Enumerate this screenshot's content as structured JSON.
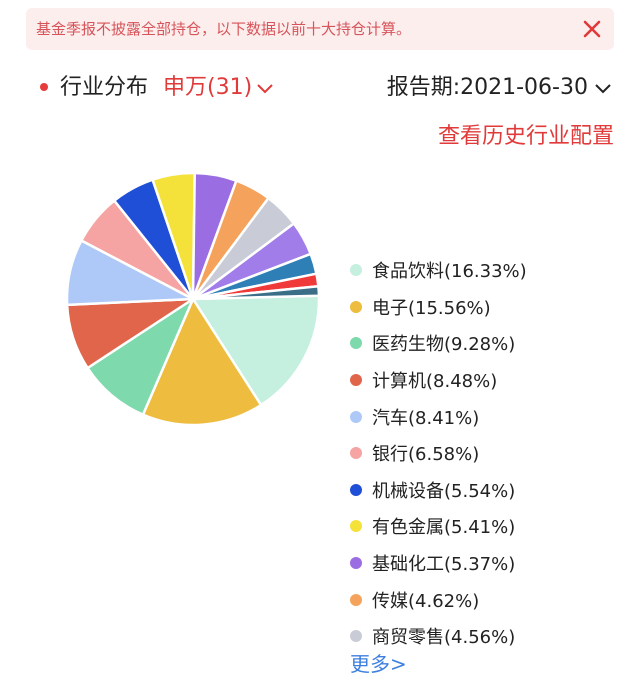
{
  "notice": {
    "text": "基金季报不披露全部持仓，以下数据以前十大持仓计算。"
  },
  "header": {
    "title": "行业分布",
    "classification": "申万(31)",
    "period": "报告期:2021-06-30"
  },
  "history_link": "查看历史行业配置",
  "more_link": "更多>",
  "colors": {
    "accent": "#e03a3a",
    "link": "#3d7fe0",
    "notice_bg": "#fdeeee"
  },
  "chart_data": {
    "type": "pie",
    "slices": [
      {
        "label": "食品饮料(16.33%)",
        "value": 16.33,
        "color": "#c5efdf"
      },
      {
        "label": "电子(15.56%)",
        "value": 15.56,
        "color": "#eebc3e"
      },
      {
        "label": "医药生物(9.28%)",
        "value": 9.28,
        "color": "#7ed9ac"
      },
      {
        "label": "计算机(8.48%)",
        "value": 8.48,
        "color": "#e0654b"
      },
      {
        "label": "汽车(8.41%)",
        "value": 8.41,
        "color": "#aec8f7"
      },
      {
        "label": "银行(6.58%)",
        "value": 6.58,
        "color": "#f5a3a3"
      },
      {
        "label": "机械设备(5.54%)",
        "value": 5.54,
        "color": "#1f4fd6"
      },
      {
        "label": "有色金属(5.41%)",
        "value": 5.41,
        "color": "#f4e23a"
      },
      {
        "label": "基础化工(5.37%)",
        "value": 5.37,
        "color": "#9b6de3"
      },
      {
        "label": "传媒(4.62%)",
        "value": 4.62,
        "color": "#f5a35c"
      },
      {
        "label": "商贸零售(4.56%)",
        "value": 4.56,
        "color": "#c9ccd6"
      },
      {
        "label": "",
        "value": 4.4,
        "color": "#a07de8"
      },
      {
        "label": "",
        "value": 2.6,
        "color": "#2d7fb5"
      },
      {
        "label": "",
        "value": 1.6,
        "color": "#f03a3a"
      },
      {
        "label": "",
        "value": 1.2,
        "color": "#3b6f88"
      }
    ]
  }
}
